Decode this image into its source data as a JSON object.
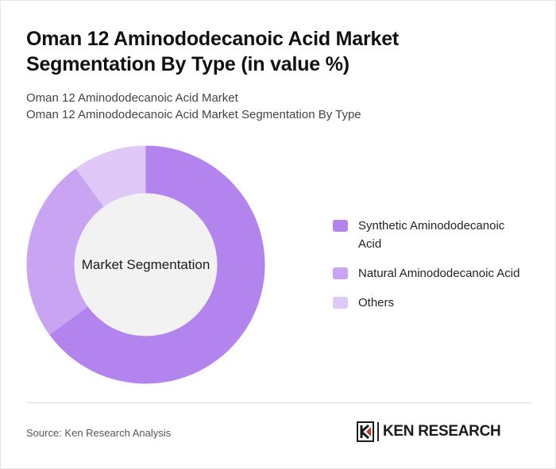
{
  "header": {
    "title": "Oman 12 Aminododecanoic Acid Market Segmentation By Type (in value %)",
    "subtitle_1": "Oman 12 Aminododecanoic Acid Market",
    "subtitle_2": "Oman 12 Aminododecanoic Acid Market Segmentation By Type"
  },
  "chart_data": {
    "type": "pie",
    "variant": "donut",
    "center_label": "Market Segmentation",
    "categories": [
      "Synthetic Aminododecanoic Acid",
      "Natural Aminododecanoic Acid",
      "Others"
    ],
    "values": [
      65,
      25,
      10
    ],
    "colors": [
      "#b384ee",
      "#c9a4f3",
      "#dfc8f8"
    ],
    "legend_position": "right"
  },
  "footer": {
    "source": "Source: Ken Research Analysis",
    "brand": "KEN RESEARCH"
  }
}
